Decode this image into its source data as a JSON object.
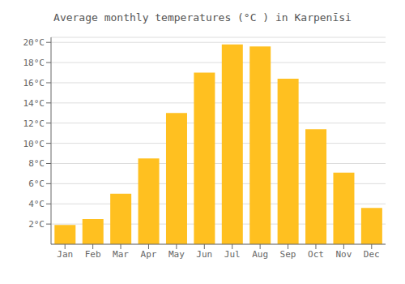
{
  "chart_data": {
    "type": "bar",
    "title": "Average monthly temperatures (°C ) in Karpenīsi",
    "categories": [
      "Jan",
      "Feb",
      "Mar",
      "Apr",
      "May",
      "Jun",
      "Jul",
      "Aug",
      "Sep",
      "Oct",
      "Nov",
      "Dec"
    ],
    "values": [
      1.9,
      2.5,
      5.0,
      8.5,
      13.0,
      17.0,
      19.8,
      19.6,
      16.4,
      11.4,
      7.1,
      3.6
    ],
    "color": "#FFC020",
    "ylim": [
      0,
      20.5
    ],
    "yticks": [
      {
        "value": 2,
        "label": "2°C"
      },
      {
        "value": 4,
        "label": "4°C"
      },
      {
        "value": 6,
        "label": "6°C"
      },
      {
        "value": 8,
        "label": "8°C"
      },
      {
        "value": 10,
        "label": "10°C"
      },
      {
        "value": 12,
        "label": "12°C"
      },
      {
        "value": 14,
        "label": "14°C"
      },
      {
        "value": 16,
        "label": "16°C"
      },
      {
        "value": 18,
        "label": "18°C"
      },
      {
        "value": 20,
        "label": "20°C"
      }
    ],
    "grid": true
  }
}
